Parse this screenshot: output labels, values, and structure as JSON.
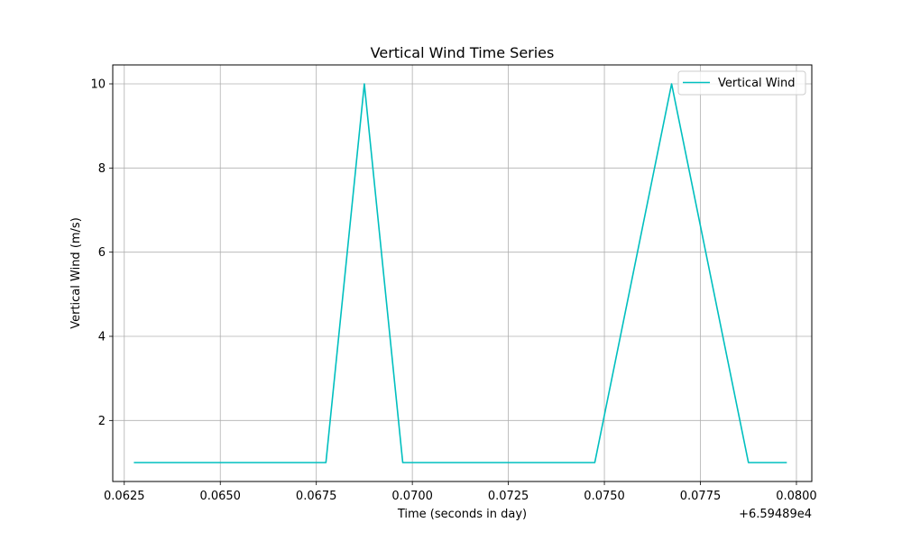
{
  "chart_data": {
    "type": "line",
    "title": "Vertical Wind Time Series",
    "xlabel": "Time (seconds in day)",
    "ylabel": "Vertical Wind (m/s)",
    "x_offset_label": "+6.59489e4",
    "x_offset": 65948.9,
    "xlim": [
      0.0622,
      0.0804
    ],
    "ylim": [
      0.55,
      10.45
    ],
    "xticks": [
      0.0625,
      0.065,
      0.0675,
      0.07,
      0.0725,
      0.075,
      0.0775,
      0.08
    ],
    "xtick_labels": [
      "0.0625",
      "0.0650",
      "0.0675",
      "0.0700",
      "0.0725",
      "0.0750",
      "0.0775",
      "0.0800"
    ],
    "yticks": [
      2,
      4,
      6,
      8,
      10
    ],
    "ytick_labels": [
      "2",
      "4",
      "6",
      "8",
      "10"
    ],
    "grid": true,
    "legend_position": "top-right",
    "series": [
      {
        "name": "Vertical Wind",
        "color": "#00bfbf",
        "x": [
          0.06275,
          0.06775,
          0.06875,
          0.06975,
          0.07475,
          0.07675,
          0.07875,
          0.07975
        ],
        "y": [
          1,
          1,
          10,
          1,
          1,
          10,
          1,
          1
        ]
      }
    ]
  }
}
